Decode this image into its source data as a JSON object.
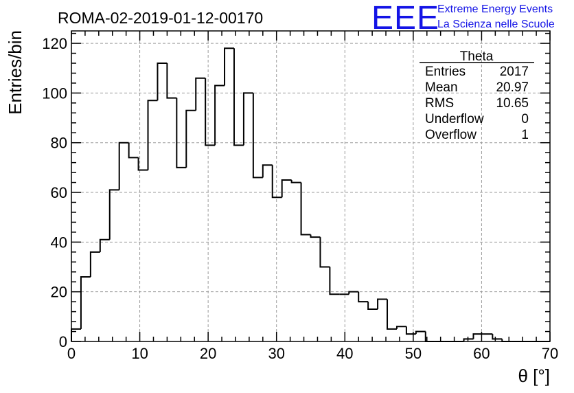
{
  "chart_data": {
    "type": "histogram",
    "title": "ROMA-02-2019-01-12-00170",
    "xlabel": "θ [°]",
    "ylabel": "Entries/bin",
    "xlim": [
      0,
      70
    ],
    "ylim": [
      0,
      125
    ],
    "xticks": [
      0,
      10,
      20,
      30,
      40,
      50,
      60,
      70
    ],
    "yticks": [
      0,
      20,
      40,
      60,
      80,
      100,
      120
    ],
    "grid": true,
    "bin_width": 1.4,
    "values": [
      5,
      26,
      36,
      41,
      61,
      80,
      74,
      69,
      97,
      112,
      98,
      70,
      93,
      106,
      79,
      103,
      118,
      79,
      100,
      66,
      71,
      58,
      65,
      64,
      43,
      42,
      30,
      19,
      19,
      20,
      16,
      13,
      17,
      5,
      6,
      3,
      4,
      0,
      0,
      0,
      0,
      1,
      3,
      3,
      1,
      0,
      0,
      0,
      0,
      0
    ],
    "stats_box": {
      "name": "Theta",
      "rows": [
        {
          "label": "Entries",
          "value": "2017"
        },
        {
          "label": "Mean",
          "value": "20.97"
        },
        {
          "label": "RMS",
          "value": "10.65"
        },
        {
          "label": "Underflow",
          "value": "0"
        },
        {
          "label": "Overflow",
          "value": "1"
        }
      ]
    }
  },
  "logo": {
    "mark": "EEE",
    "line1": "Extreme Energy Events",
    "line2": "La Scienza nelle Scuole",
    "color": "#1414e6"
  }
}
